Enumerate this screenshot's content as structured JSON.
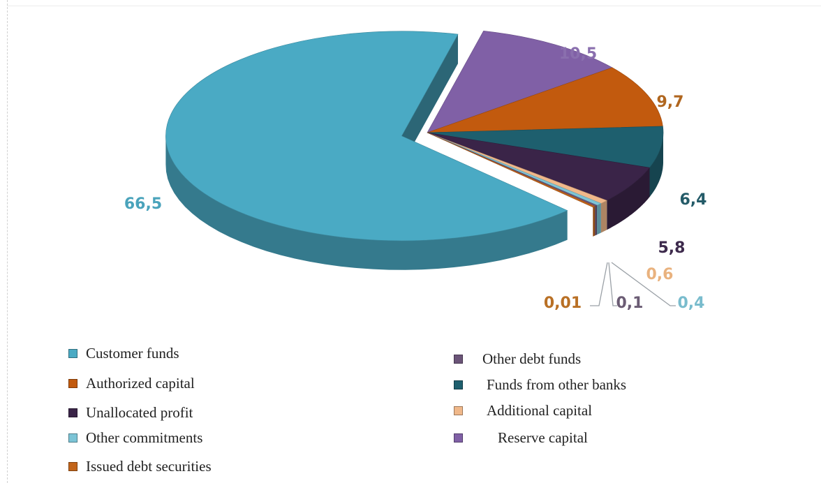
{
  "chart_data": {
    "type": "pie",
    "title": "",
    "slices": [
      {
        "label": "Customer funds",
        "value": 66.5,
        "display": "66,5",
        "color": "#4aaac4",
        "label_color": "#4aa3bb"
      },
      {
        "label": "Reserve capital",
        "value": 10.5,
        "display": "10,5",
        "color": "#8060a6",
        "label_color": "#8a6fae"
      },
      {
        "label": "Authorized capital",
        "value": 9.7,
        "display": "9,7",
        "color": "#c25a0e",
        "label_color": "#b0661f"
      },
      {
        "label": "Funds from other banks",
        "value": 6.4,
        "display": "6,4",
        "color": "#1e5f6e",
        "label_color": "#245b68"
      },
      {
        "label": "Unallocated profit",
        "value": 5.8,
        "display": "5,8",
        "color": "#3a2448",
        "label_color": "#3d2a4c"
      },
      {
        "label": "Additional capital",
        "value": 0.6,
        "display": "0,6",
        "color": "#f0b88a",
        "label_color": "#e9b27e"
      },
      {
        "label": "Other commitments",
        "value": 0.4,
        "display": "0,4",
        "color": "#7cc4d6",
        "label_color": "#79bccd"
      },
      {
        "label": "Other debt funds",
        "value": 0.1,
        "display": "0,1",
        "color": "#6b5478",
        "label_color": "#6b5c74"
      },
      {
        "label": "Issued debt securities",
        "value": 0.01,
        "display": "0,01",
        "color": "#c2641a",
        "label_color": "#b97025"
      }
    ],
    "legend_placement": "bottom",
    "3d": true,
    "exploded_slice": "Customer funds"
  },
  "legend": {
    "left": [
      {
        "label": "Customer funds",
        "color": "#4aaac4"
      },
      {
        "label": "Authorized capital",
        "color": "#c25a0e"
      },
      {
        "label": "Unallocated profit",
        "color": "#3a2448"
      },
      {
        "label": "Other commitments",
        "color": "#7cc4d6"
      },
      {
        "label": "Issued debt securities",
        "color": "#c2641a"
      }
    ],
    "right": [
      {
        "label": "Other debt funds",
        "color": "#6b5478"
      },
      {
        "label": "Funds from other banks",
        "color": "#1e5f6e"
      },
      {
        "label": "Additional capital",
        "color": "#f0b88a"
      },
      {
        "label": "Reserve capital",
        "color": "#8060a6"
      }
    ]
  }
}
